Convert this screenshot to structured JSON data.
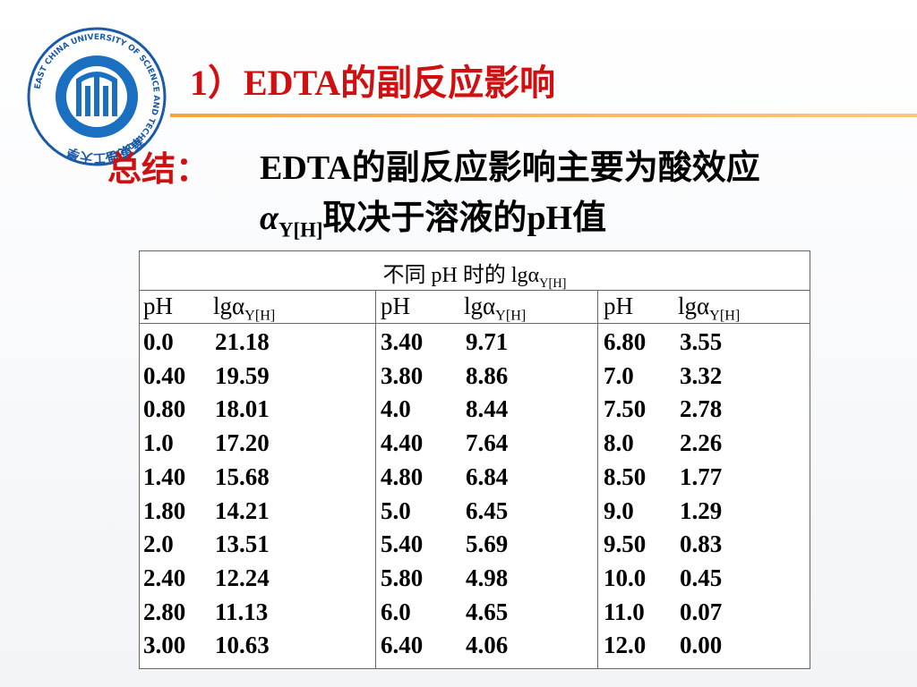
{
  "header": {
    "title": "1）EDTA的副反应影响",
    "logo_cn": "華東理工大學",
    "logo_en": "EAST CHINA UNIVERSITY OF SCIENCE AND TECHNOLOGY"
  },
  "summary": {
    "label": "总结：",
    "line1": "EDTA的副反应影响主要为酸效应",
    "line2_symbol": "α",
    "line2_sub": "Y[H]",
    "line2_text": "取决于溶液的pH值"
  },
  "table": {
    "caption": {
      "text": "不同 pH 时的 lgα",
      "sub": "Y[H]"
    },
    "columns": [
      {
        "ph": "pH",
        "lg": "lgα",
        "sub": "Y[H]"
      },
      {
        "ph": "pH",
        "lg": "lgα",
        "sub": "Y[H]"
      },
      {
        "ph": "pH",
        "lg": "lgα",
        "sub": "Y[H]"
      }
    ],
    "groups": [
      [
        [
          "0.0",
          "21.18"
        ],
        [
          "0.40",
          "19.59"
        ],
        [
          "0.80",
          "18.01"
        ],
        [
          "1.0",
          "17.20"
        ],
        [
          "1.40",
          "15.68"
        ],
        [
          "1.80",
          "14.21"
        ],
        [
          "2.0",
          "13.51"
        ],
        [
          "2.40",
          "12.24"
        ],
        [
          "2.80",
          "11.13"
        ],
        [
          "3.00",
          "10.63"
        ]
      ],
      [
        [
          "3.40",
          "9.71"
        ],
        [
          "3.80",
          "8.86"
        ],
        [
          "4.0",
          "8.44"
        ],
        [
          "4.40",
          "7.64"
        ],
        [
          "4.80",
          "6.84"
        ],
        [
          "5.0",
          "6.45"
        ],
        [
          "5.40",
          "5.69"
        ],
        [
          "5.80",
          "4.98"
        ],
        [
          "6.0",
          "4.65"
        ],
        [
          "6.40",
          "4.06"
        ]
      ],
      [
        [
          "6.80",
          "3.55"
        ],
        [
          "7.0",
          "3.32"
        ],
        [
          "7.50",
          "2.78"
        ],
        [
          "8.0",
          "2.26"
        ],
        [
          "8.50",
          "1.77"
        ],
        [
          "9.0",
          "1.29"
        ],
        [
          "9.50",
          "0.83"
        ],
        [
          "10.0",
          "0.45"
        ],
        [
          "11.0",
          "0.07"
        ],
        [
          "12.0",
          "0.00"
        ]
      ]
    ]
  }
}
